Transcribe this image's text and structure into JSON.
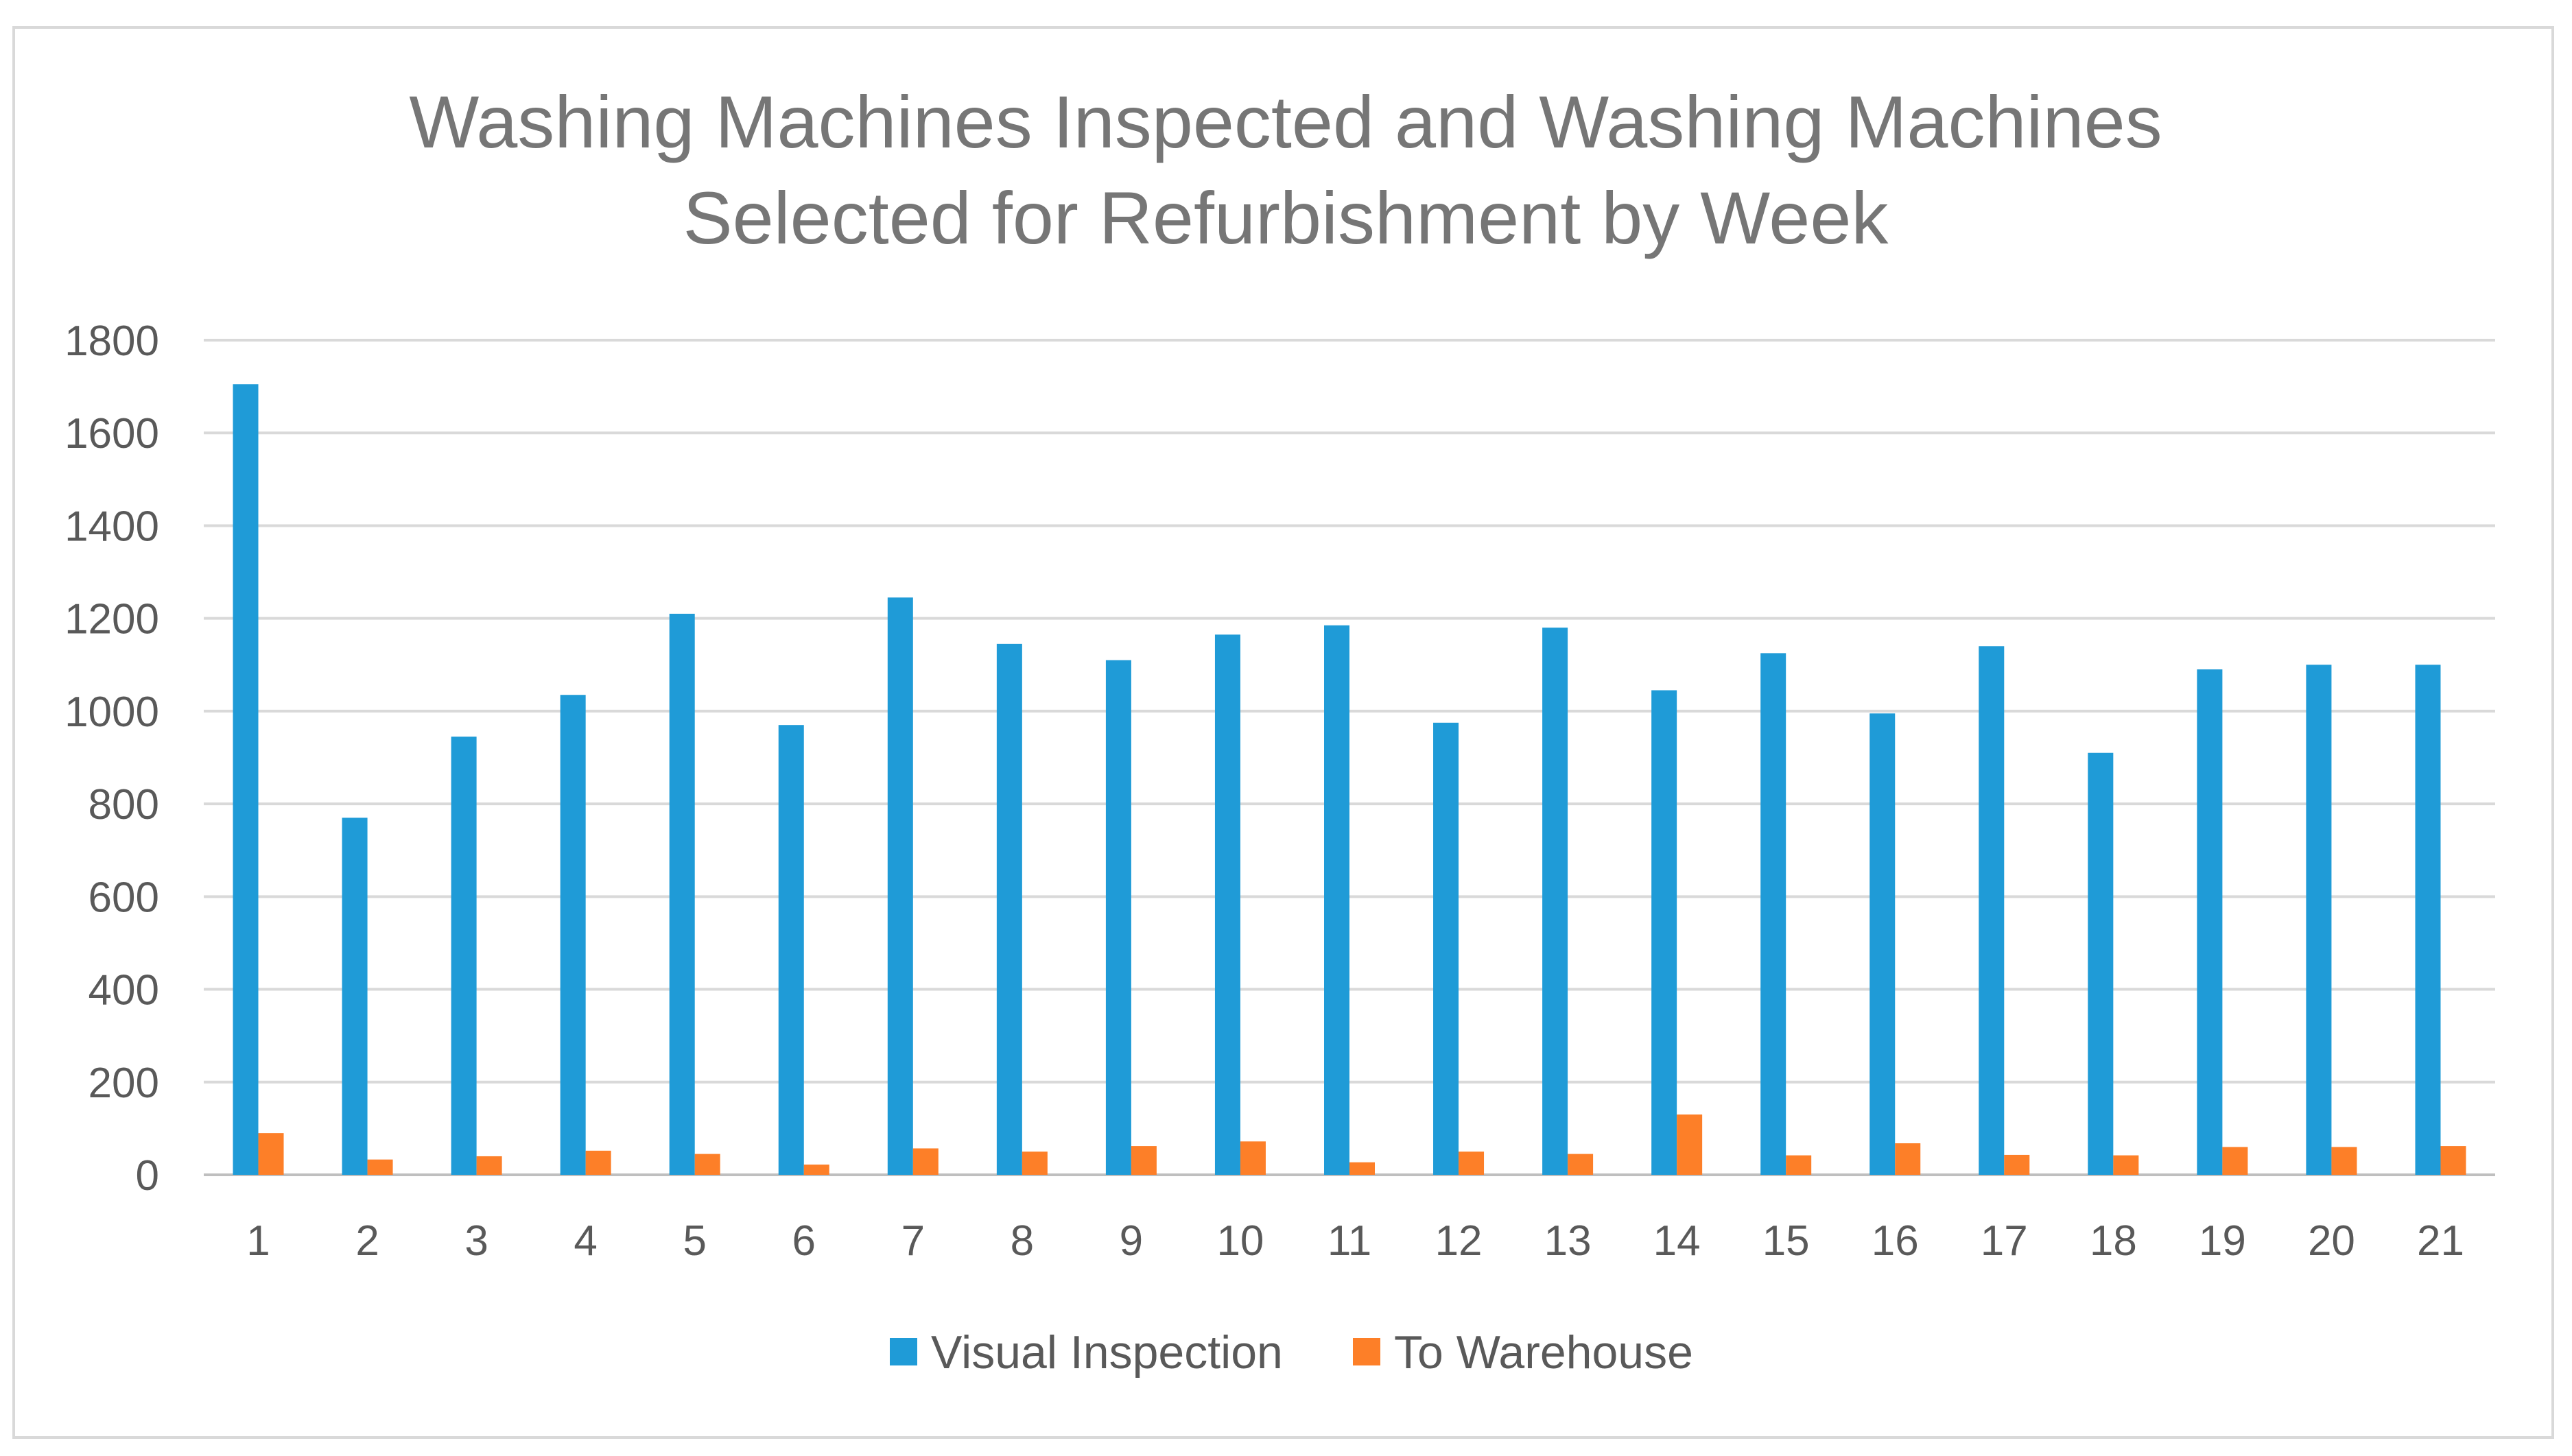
{
  "chart_data": {
    "type": "bar",
    "title": "Washing Machines Inspected and Washing Machines Selected for Refurbishment by Week",
    "title_lines": [
      "Washing Machines Inspected and Washing Machines",
      "Selected for Refurbishment by Week"
    ],
    "xlabel": "",
    "ylabel": "",
    "ylim": [
      0,
      1800
    ],
    "yticks": [
      0,
      200,
      400,
      600,
      800,
      1000,
      1200,
      1400,
      1600,
      1800
    ],
    "grid": true,
    "legend_position": "bottom",
    "categories": [
      "1",
      "2",
      "3",
      "4",
      "5",
      "6",
      "7",
      "8",
      "9",
      "10",
      "11",
      "12",
      "13",
      "14",
      "15",
      "16",
      "17",
      "18",
      "19",
      "20",
      "21"
    ],
    "series": [
      {
        "name": "Visual Inspection",
        "color": "#1f9bd7",
        "values": [
          1705,
          770,
          945,
          1035,
          1210,
          970,
          1245,
          1145,
          1110,
          1165,
          1185,
          975,
          1180,
          1045,
          1125,
          995,
          1140,
          910,
          1090,
          1100,
          1100
        ]
      },
      {
        "name": "To Warehouse",
        "color": "#fd7f28",
        "values": [
          90,
          33,
          40,
          52,
          45,
          22,
          57,
          50,
          62,
          72,
          27,
          50,
          45,
          130,
          42,
          68,
          43,
          42,
          60,
          60,
          62
        ]
      }
    ],
    "colors": {
      "grid": "#d9d9d9",
      "axis": "#bfbfbf",
      "text": "#595959",
      "title": "#767676"
    }
  }
}
